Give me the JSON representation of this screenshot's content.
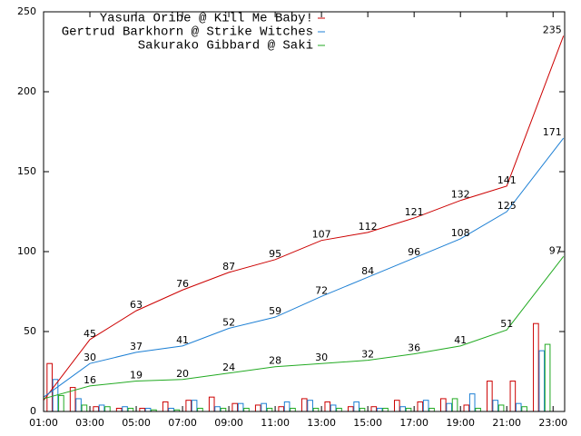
{
  "chart_data": {
    "type": "line",
    "xlim": [
      1,
      23.5
    ],
    "ylim": [
      0,
      250
    ],
    "yticks": [
      0,
      50,
      100,
      150,
      200,
      250
    ],
    "xticks": [
      {
        "value": 1,
        "label": "01:00"
      },
      {
        "value": 3,
        "label": "03:00"
      },
      {
        "value": 5,
        "label": "05:00"
      },
      {
        "value": 7,
        "label": "07:00"
      },
      {
        "value": 9,
        "label": "09:00"
      },
      {
        "value": 11,
        "label": "11:00"
      },
      {
        "value": 13,
        "label": "13:00"
      },
      {
        "value": 15,
        "label": "15:00"
      },
      {
        "value": 17,
        "label": "17:00"
      },
      {
        "value": 19,
        "label": "19:00"
      },
      {
        "value": 21,
        "label": "21:00"
      },
      {
        "value": 23,
        "label": "23:00"
      }
    ],
    "x": [
      1,
      3,
      5,
      7,
      9,
      11,
      13,
      15,
      17,
      19,
      21,
      23.45
    ],
    "hours": [
      1,
      2,
      3,
      4,
      5,
      6,
      7,
      8,
      9,
      10,
      11,
      12,
      13,
      14,
      15,
      16,
      17,
      18,
      19,
      20,
      21,
      22
    ],
    "series": [
      {
        "name": "Yasuna Oribe @ Kill Me Baby!",
        "color": "#cc0000",
        "values": [
          7,
          45,
          63,
          76,
          87,
          95,
          107,
          112,
          121,
          132,
          141,
          235
        ],
        "value_labels": [
          null,
          "45",
          "63",
          "76",
          "87",
          "95",
          "107",
          "112",
          "121",
          "132",
          "141",
          "235"
        ],
        "hourly": [
          30,
          15,
          3,
          2,
          2,
          6,
          7,
          9,
          5,
          4,
          3,
          8,
          6,
          3,
          3,
          7,
          6,
          8,
          4,
          19,
          19,
          55
        ]
      },
      {
        "name": "Gertrud Barkhorn @ Strike Witches",
        "color": "#1c7fd4",
        "values": [
          9,
          30,
          37,
          41,
          52,
          59,
          72,
          84,
          96,
          108,
          125,
          171
        ],
        "value_labels": [
          null,
          "30",
          "37",
          "41",
          "52",
          "59",
          "72",
          "84",
          "96",
          "108",
          "125",
          "171"
        ],
        "hourly": [
          20,
          8,
          4,
          3,
          2,
          2,
          7,
          3,
          5,
          5,
          6,
          7,
          4,
          6,
          2,
          3,
          7,
          5,
          11,
          7,
          5,
          38
        ]
      },
      {
        "name": "Sakurako Gibbard @ Saki",
        "color": "#22aa22",
        "values": [
          8,
          16,
          19,
          20,
          24,
          28,
          30,
          32,
          36,
          41,
          51,
          97
        ],
        "value_labels": [
          null,
          "16",
          "19",
          "20",
          "24",
          "28",
          "30",
          "32",
          "36",
          "41",
          "51",
          "97"
        ],
        "hourly": [
          10,
          4,
          3,
          2,
          1,
          1,
          2,
          2,
          2,
          2,
          2,
          2,
          2,
          2,
          2,
          2,
          2,
          8,
          2,
          4,
          3,
          42
        ]
      }
    ]
  }
}
